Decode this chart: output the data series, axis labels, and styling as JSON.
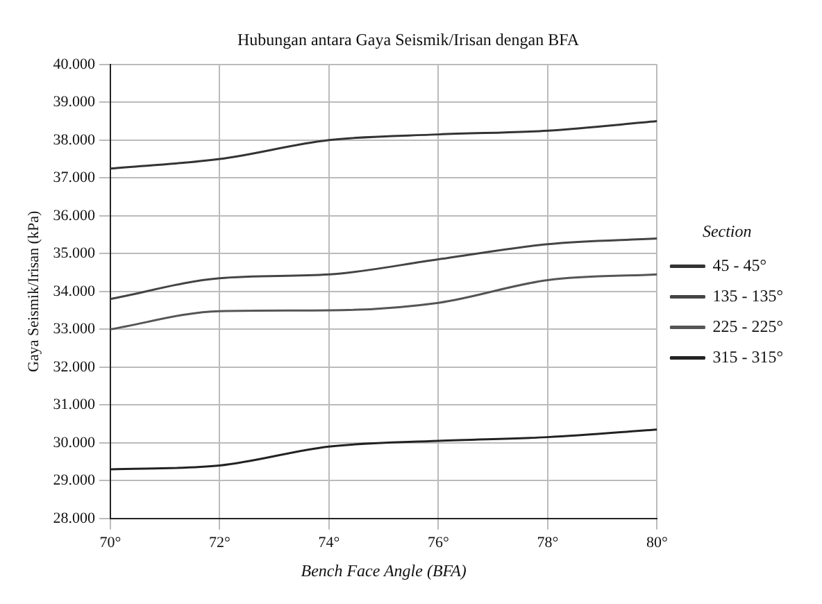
{
  "chart_data": {
    "type": "line",
    "title": "Hubungan antara Gaya Seismik/Irisan dengan BFA",
    "xlabel": "Bench Face Angle (BFA)",
    "ylabel": "Gaya Seismik/Irisan (kPa)",
    "legend_title": "Section",
    "x": [
      70,
      72,
      74,
      76,
      78,
      80
    ],
    "series": [
      {
        "name": "45 - 45°",
        "color": "#333333",
        "values": [
          37250,
          37500,
          38000,
          38150,
          38250,
          38500
        ]
      },
      {
        "name": "135 - 135°",
        "color": "#444444",
        "values": [
          33800,
          34350,
          34450,
          34850,
          35250,
          35400
        ]
      },
      {
        "name": "225 - 225°",
        "color": "#555555",
        "values": [
          33000,
          33480,
          33500,
          33700,
          34300,
          34450
        ]
      },
      {
        "name": "315 - 315°",
        "color": "#222222",
        "values": [
          29300,
          29400,
          29900,
          30050,
          30150,
          30350
        ]
      }
    ],
    "xlim": [
      70,
      80
    ],
    "xticks": [
      {
        "value": 70,
        "label": "70°"
      },
      {
        "value": 72,
        "label": "72°"
      },
      {
        "value": 74,
        "label": "74°"
      },
      {
        "value": 76,
        "label": "76°"
      },
      {
        "value": 78,
        "label": "78°"
      },
      {
        "value": 80,
        "label": "80°"
      }
    ],
    "ylim": [
      28000,
      40000
    ],
    "yticks": [
      {
        "value": 28000,
        "label": "28.000"
      },
      {
        "value": 29000,
        "label": "29.000"
      },
      {
        "value": 30000,
        "label": "30.000"
      },
      {
        "value": 31000,
        "label": "31.000"
      },
      {
        "value": 32000,
        "label": "32.000"
      },
      {
        "value": 33000,
        "label": "33.000"
      },
      {
        "value": 34000,
        "label": "34.000"
      },
      {
        "value": 35000,
        "label": "35.000"
      },
      {
        "value": 36000,
        "label": "36.000"
      },
      {
        "value": 37000,
        "label": "37.000"
      },
      {
        "value": 38000,
        "label": "38.000"
      },
      {
        "value": 39000,
        "label": "39.000"
      },
      {
        "value": 40000,
        "label": "40.000"
      }
    ],
    "grid": true,
    "legend": "right",
    "marker": "none",
    "line_style": "solid"
  }
}
